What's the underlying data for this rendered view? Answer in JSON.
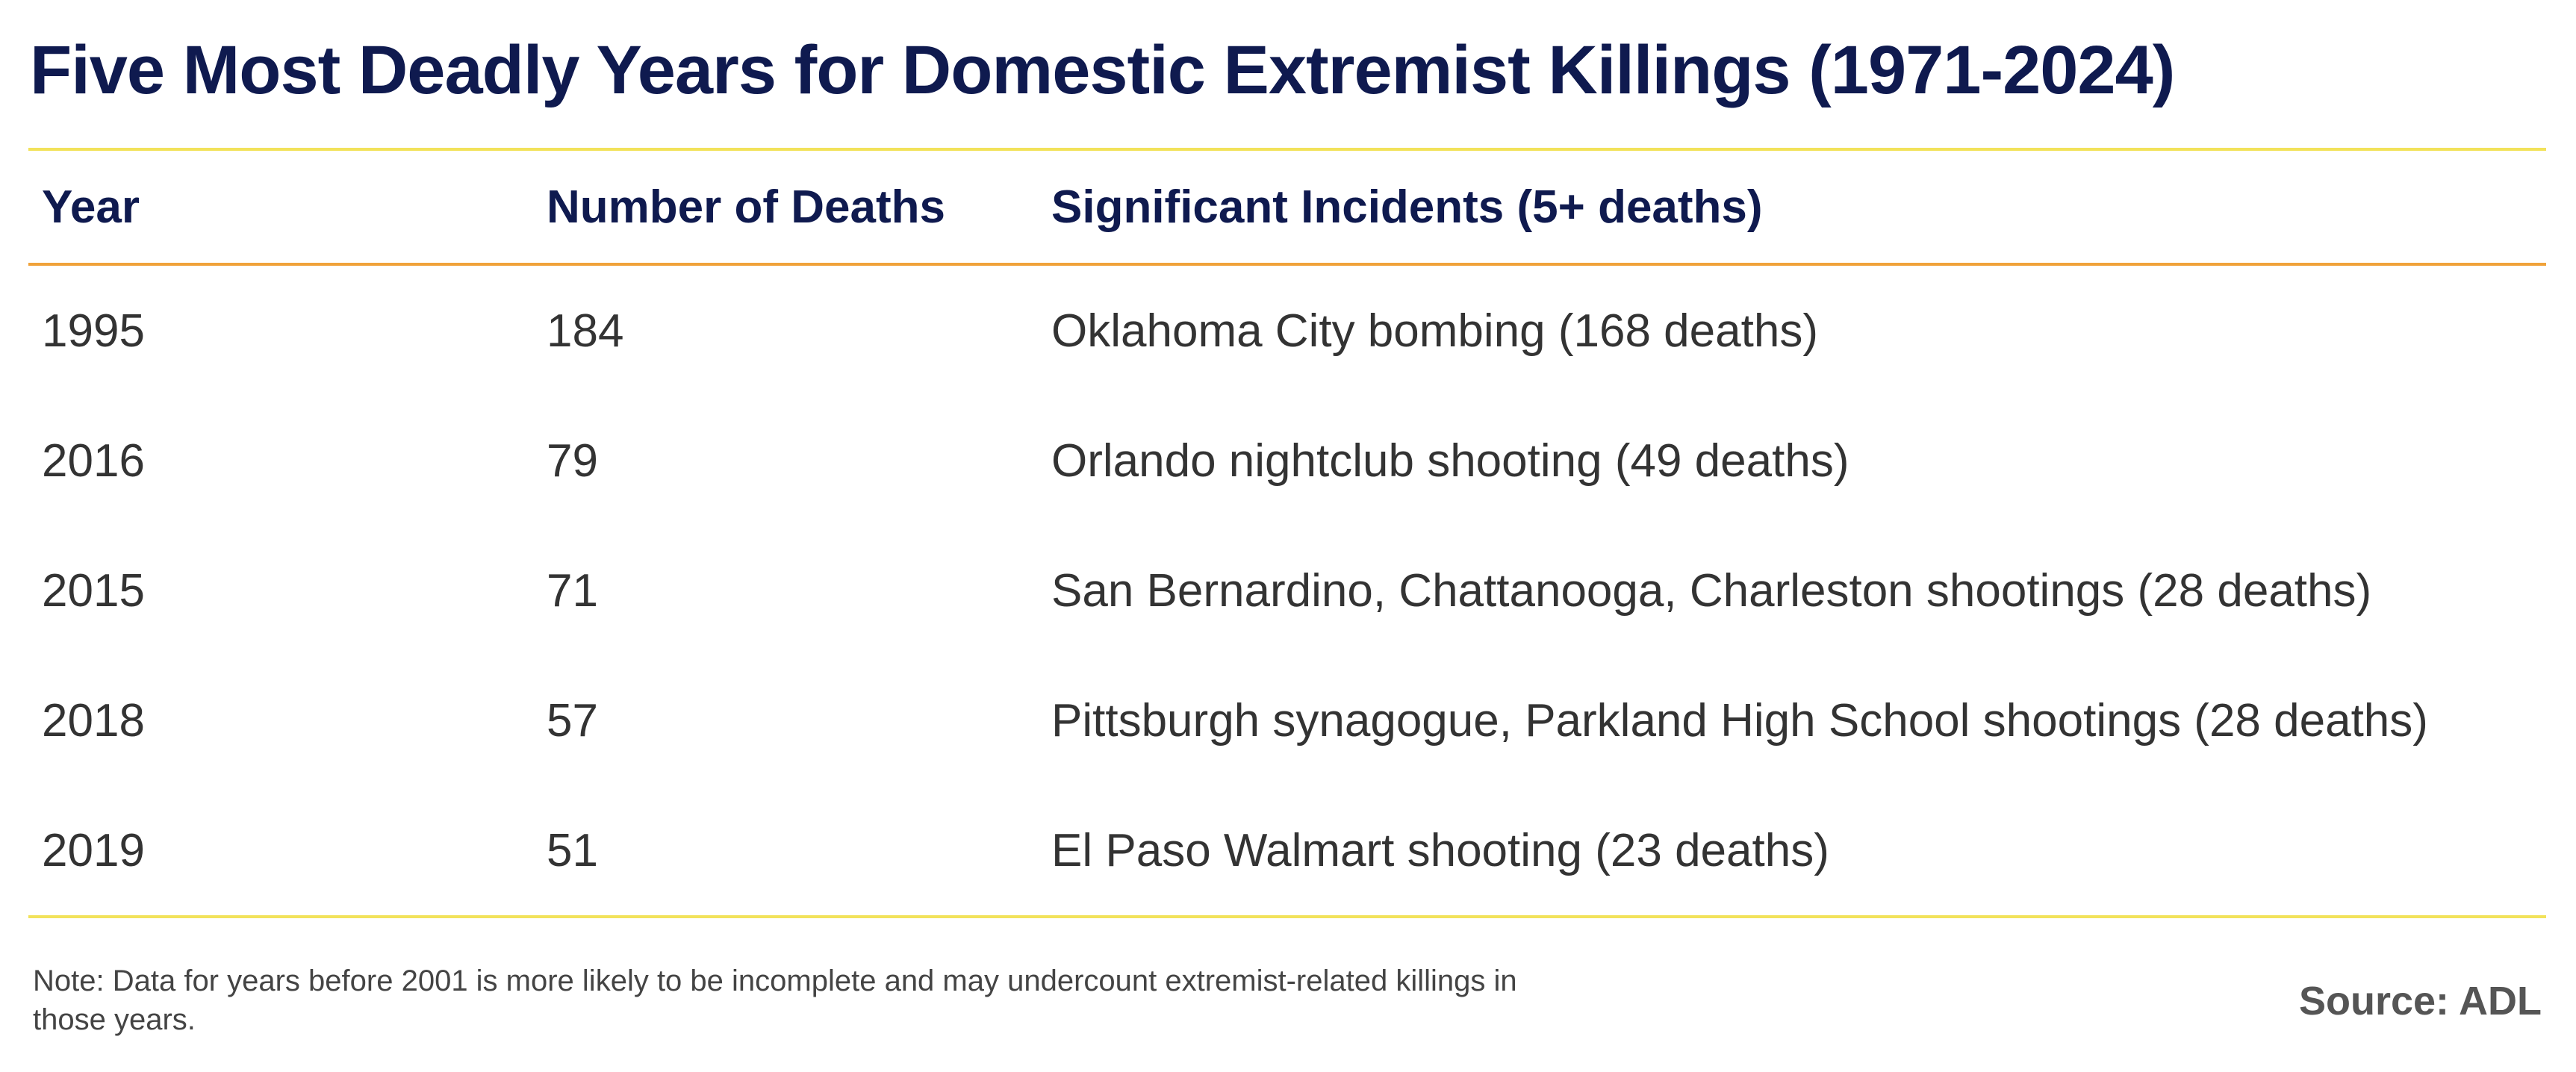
{
  "chart_data": {
    "type": "table",
    "title": "Five Most Deadly Years for Domestic Extremist Killings (1971-2024)",
    "columns": [
      "Year",
      "Number of Deaths",
      "Significant Incidents (5+ deaths)"
    ],
    "rows": [
      {
        "year": "1995",
        "deaths": "184",
        "incidents": "Oklahoma City bombing (168 deaths)"
      },
      {
        "year": "2016",
        "deaths": "79",
        "incidents": "Orlando nightclub shooting (49 deaths)"
      },
      {
        "year": "2015",
        "deaths": "71",
        "incidents": "San Bernardino, Chattanooga, Charleston shootings (28 deaths)"
      },
      {
        "year": "2018",
        "deaths": "57",
        "incidents": "Pittsburgh synagogue, Parkland High School shootings (28 deaths)"
      },
      {
        "year": "2019",
        "deaths": "51",
        "incidents": "El Paso Walmart shooting (23 deaths)"
      }
    ],
    "note": "Note: Data for years before 2001 is more likely to be incomplete and may undercount extremist-related killings in those years.",
    "source": "Source: ADL"
  },
  "colors": {
    "title": "#0f1a4f",
    "header_text": "#0f1a4f",
    "body_text": "#333333",
    "rule_top": "#f2e25a",
    "rule_header": "#f0a23a",
    "rule_bottom": "#f2e25a"
  }
}
